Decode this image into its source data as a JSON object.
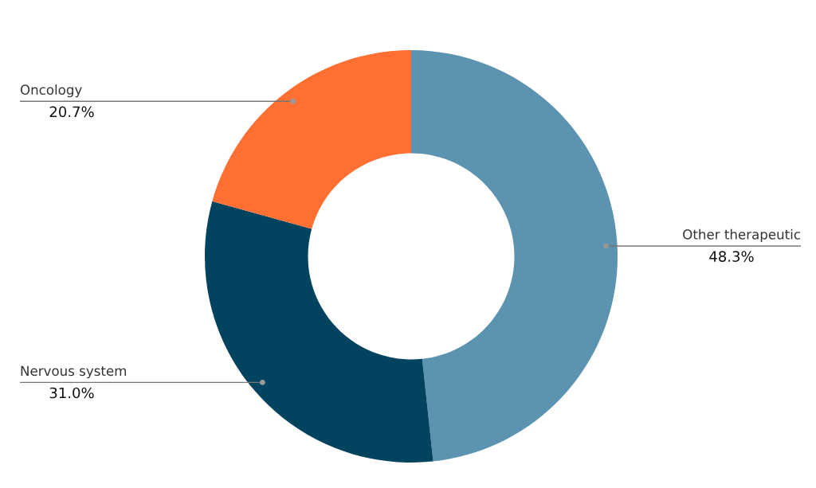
{
  "chart_data": {
    "type": "donut",
    "categories": [
      "Other therapeutic",
      "Nervous system",
      "Oncology"
    ],
    "values": [
      48.3,
      31.0,
      20.7
    ],
    "colors": [
      "#5b93b0",
      "#02445f",
      "#ff6f31"
    ],
    "value_labels": [
      "48.3%",
      "31.0%",
      "20.7%"
    ],
    "legend": false
  }
}
